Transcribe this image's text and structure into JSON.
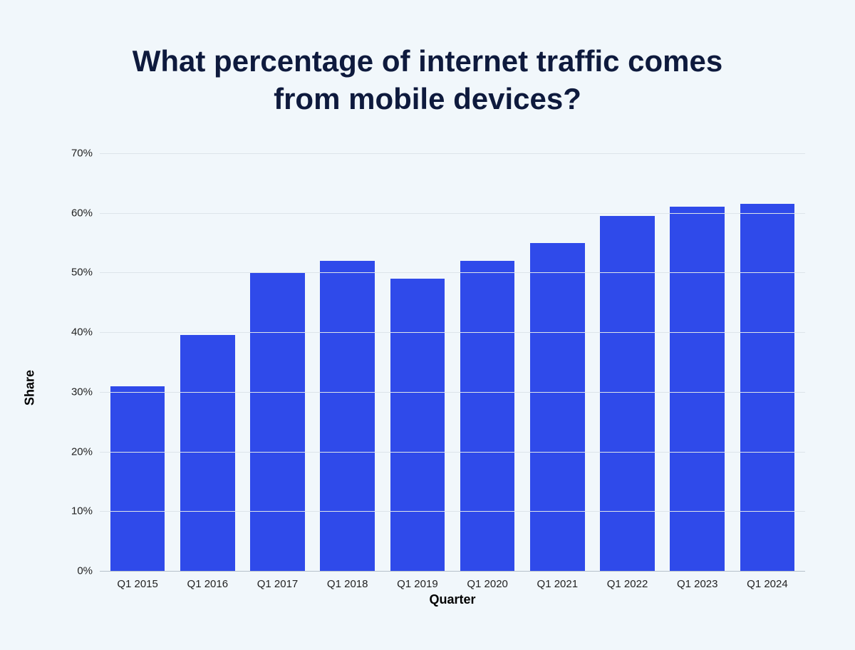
{
  "chart": {
    "type": "bar",
    "title": "What percentage of internet traffic comes from mobile devices?",
    "title_color": "#0e1a3d",
    "title_fontsize": 42,
    "title_fontweight": 800,
    "y_label": "Share",
    "x_label": "Quarter",
    "axis_label_color": "#000000",
    "axis_label_fontsize": 18,
    "background_color": "#f1f7fb",
    "plot_background": "transparent",
    "grid_color": "#dde4ea",
    "axis_line_color": "#b7c2cb",
    "tick_label_color": "#222222",
    "tick_fontsize": 15,
    "bar_color": "#2f4aea",
    "bar_width_ratio": 0.78,
    "y_min": 0,
    "y_max": 70,
    "y_tick_step": 10,
    "y_ticks": [
      {
        "value": 0,
        "label": "0%"
      },
      {
        "value": 10,
        "label": "10%"
      },
      {
        "value": 20,
        "label": "20%"
      },
      {
        "value": 30,
        "label": "30%"
      },
      {
        "value": 40,
        "label": "40%"
      },
      {
        "value": 50,
        "label": "50%"
      },
      {
        "value": 60,
        "label": "60%"
      },
      {
        "value": 70,
        "label": "70%"
      }
    ],
    "categories": [
      "Q1 2015",
      "Q1 2016",
      "Q1 2017",
      "Q1 2018",
      "Q1 2019",
      "Q1 2020",
      "Q1 2021",
      "Q1 2022",
      "Q1 2023",
      "Q1 2024"
    ],
    "values": [
      31,
      39.5,
      50,
      52,
      49,
      52,
      55,
      59.5,
      61,
      61.5
    ]
  }
}
